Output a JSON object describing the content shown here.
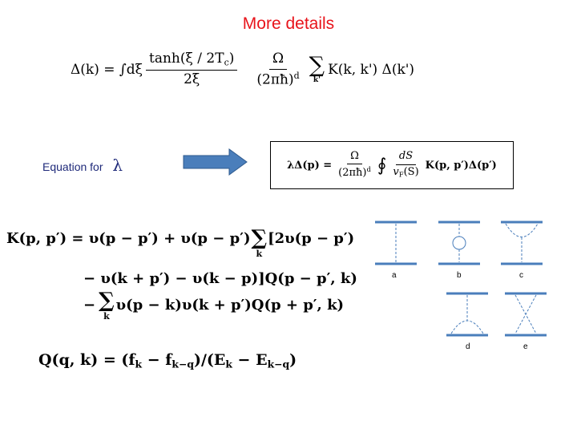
{
  "title": "More details",
  "gap_equation": {
    "lhs": "Δ(k) = ∫dξ",
    "frac1_num": "tanh(ξ / 2T",
    "frac1_num_sub": "c",
    "frac1_num_end": ")",
    "frac1_den": "2ξ",
    "frac2_num": "Ω",
    "frac2_den": "(2πħ)",
    "frac2_den_sup": "d",
    "sum_symbol": "∑",
    "sum_index": "k'",
    "rhs": "K(k, k') Δ(k')"
  },
  "lambda_label": {
    "text": "Equation for",
    "symbol": "λ"
  },
  "arrow_color": "#4a7ebb",
  "boxed_equation": {
    "lhs": "λΔ(p) =",
    "frac1_num": "Ω",
    "frac1_den": "(2πħ)",
    "frac1_den_sup": "d",
    "integral": "∮",
    "frac2_num": "dS",
    "frac2_den": "v",
    "frac2_den_sub": "F",
    "frac2_den_end": "(S)",
    "rhs": "K(p, p′)Δ(p′)"
  },
  "kernel": {
    "line1_a": "K(p, p′) = υ(p − p′) + υ(p − p′)",
    "line1_sum": "∑",
    "line1_sum_index": "k",
    "line1_b": "[2υ(p − p′)",
    "line2": "− υ(k + p′) − υ(k − p)]Q(p − p′, k)",
    "line3_a": "−",
    "line3_sum": "∑",
    "line3_sum_index": "k",
    "line3_b": "υ(p − k)υ(k + p′)Q(p + p′, k)"
  },
  "q_definition": {
    "text_a": "Q(q, k) = (f",
    "sub1": "k",
    "text_b": " − f",
    "sub2": "k−q",
    "text_c": ")/(E",
    "sub3": "k",
    "text_d": " − E",
    "sub4": "k−q",
    "text_e": ")"
  },
  "diagrams": {
    "line_color": "#4a7ebb",
    "labels": [
      "a",
      "b",
      "c",
      "d",
      "e"
    ]
  }
}
